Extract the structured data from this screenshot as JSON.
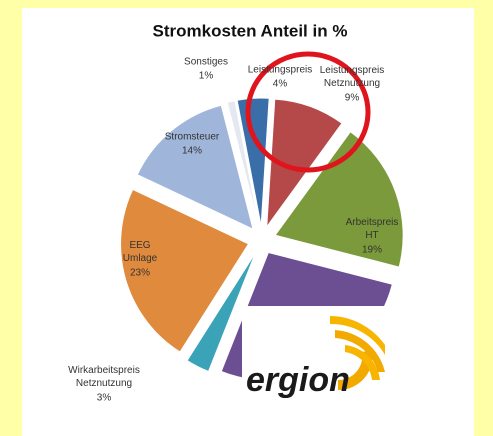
{
  "chart_data": {
    "type": "pie",
    "title": "Stromkosten Anteil in %",
    "categories": [
      "Sonstiges",
      "Leistungspreis",
      "Leistungspreis Netznutzung",
      "Arbeitspreis HT",
      null,
      "Wirkarbeitspreis Netznutzung",
      "EEG Umlage",
      "Stromsteuer"
    ],
    "values": [
      1,
      4,
      9,
      19,
      27,
      3,
      23,
      14
    ],
    "value_labels": [
      "1%",
      "4%",
      "9%",
      "19%",
      null,
      "3%",
      "23%",
      "14%"
    ],
    "colors": [
      "#e4e8f0",
      "#3a6ea8",
      "#b5494a",
      "#7b9a3c",
      "#6b4f92",
      "#3aa3b8",
      "#e08a3e",
      "#9fb6da"
    ]
  },
  "logo": "ergion"
}
